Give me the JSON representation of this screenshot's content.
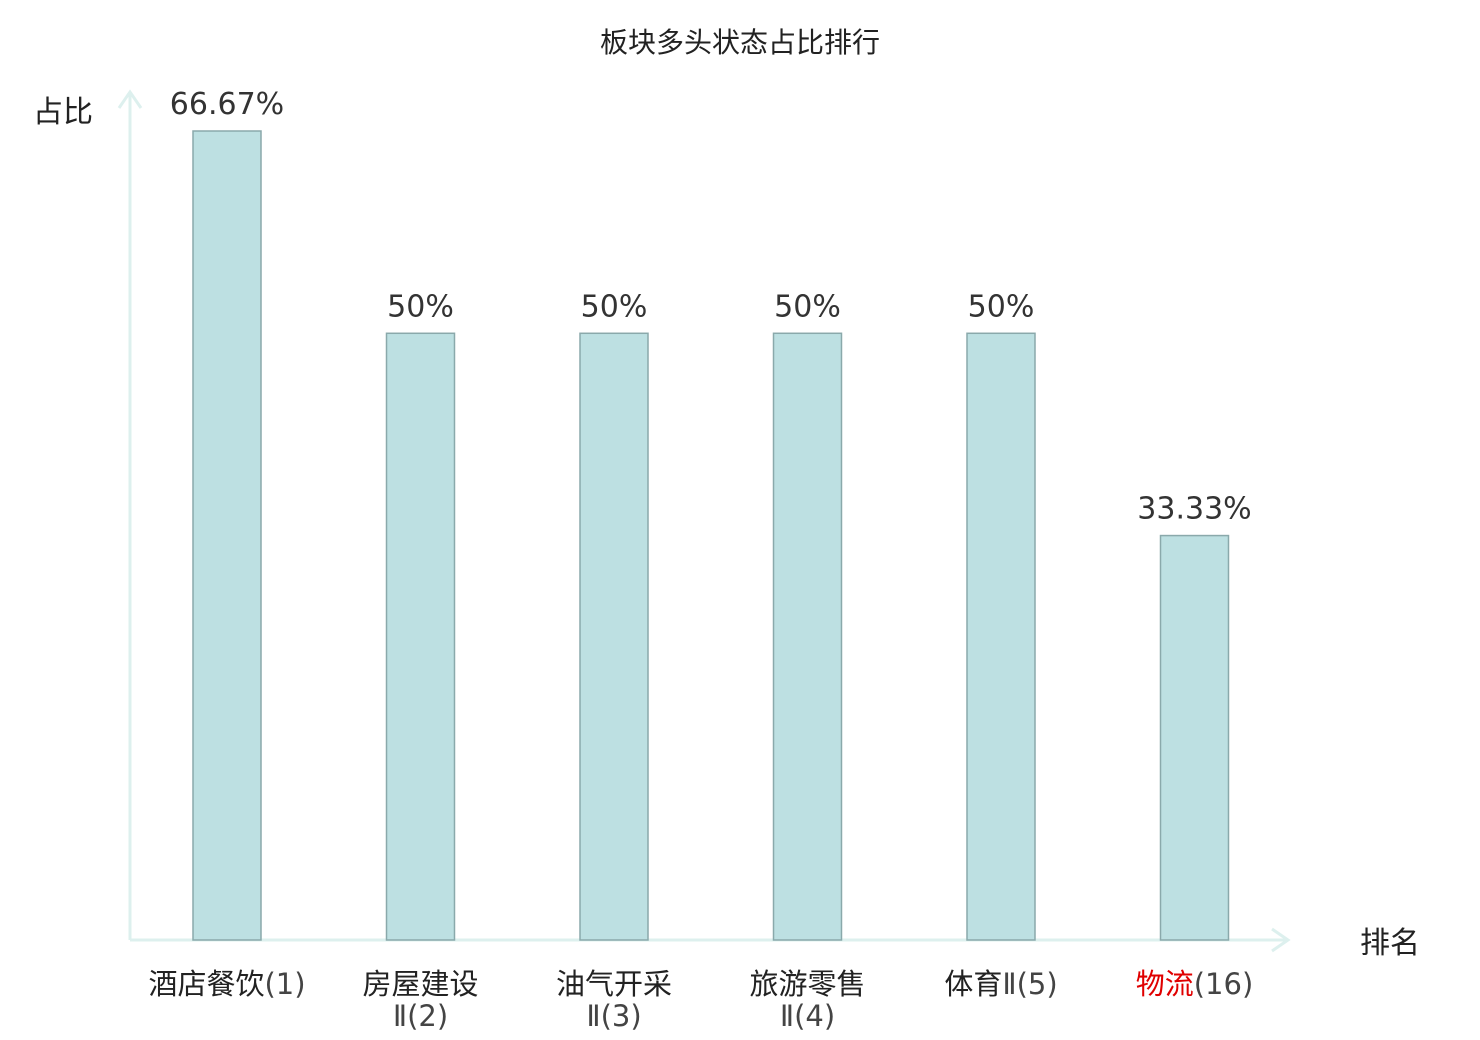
{
  "chart_data": {
    "type": "bar",
    "title": "板块多头状态占比排行",
    "ylabel": "占比",
    "xlabel": "排名",
    "ylim": [
      0,
      66.67
    ],
    "grid": false,
    "categories": [
      {
        "lines": [
          [
            "酒店餐饮",
            "(1)"
          ]
        ],
        "highlight": false
      },
      {
        "lines": [
          [
            "房屋建设",
            ""
          ],
          [
            "",
            "Ⅱ(2)"
          ]
        ],
        "highlight": false
      },
      {
        "lines": [
          [
            "油气开采",
            ""
          ],
          [
            "",
            "Ⅱ(3)"
          ]
        ],
        "highlight": false
      },
      {
        "lines": [
          [
            "旅游零售",
            ""
          ],
          [
            "",
            "Ⅱ(4)"
          ]
        ],
        "highlight": false
      },
      {
        "lines": [
          [
            "体育",
            "Ⅱ(5)"
          ]
        ],
        "highlight": false
      },
      {
        "lines": [
          [
            "物流",
            "(16)"
          ]
        ],
        "highlight": true
      }
    ],
    "values": [
      66.67,
      50,
      50,
      50,
      50,
      33.33
    ],
    "value_labels": [
      "66.67%",
      "50%",
      "50%",
      "50%",
      "50%",
      "33.33%"
    ],
    "colors": {
      "bar_fill": "#bde0e2",
      "bar_stroke": "#8aa9ab",
      "axis": "#ddf0ee",
      "highlight_label": "#e00000"
    }
  }
}
